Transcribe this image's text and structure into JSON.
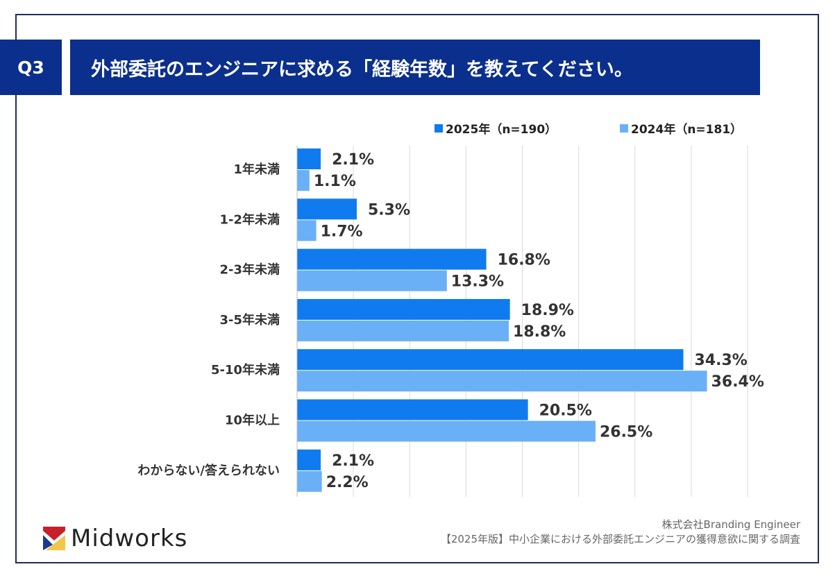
{
  "header": {
    "q_label": "Q3",
    "title": "外部委託のエンジニアに求める「経験年数」を教えてください。"
  },
  "chart_data": {
    "type": "bar",
    "orientation": "horizontal",
    "categories": [
      "1年未満",
      "1-2年未満",
      "2-3年未満",
      "3-5年未満",
      "5-10年未満",
      "10年以上",
      "わからない/答えられない"
    ],
    "series": [
      {
        "name": "2025年（n=190）",
        "color": "#0f7bef",
        "values": [
          2.1,
          5.3,
          16.8,
          18.9,
          34.3,
          20.5,
          2.1
        ]
      },
      {
        "name": "2024年（n=181）",
        "color": "#6ab0f7",
        "values": [
          1.1,
          1.7,
          13.3,
          18.8,
          36.4,
          26.5,
          2.2
        ]
      }
    ],
    "value_suffix": "%",
    "xlim": [
      0,
      40
    ],
    "grid": true,
    "legend": "top-right"
  },
  "footer": {
    "logo": "Midworks",
    "company": "株式会社Branding Engineer",
    "survey": "【2025年版】中小企業における外部委託エンジニアの獲得意欲に関する調査"
  }
}
